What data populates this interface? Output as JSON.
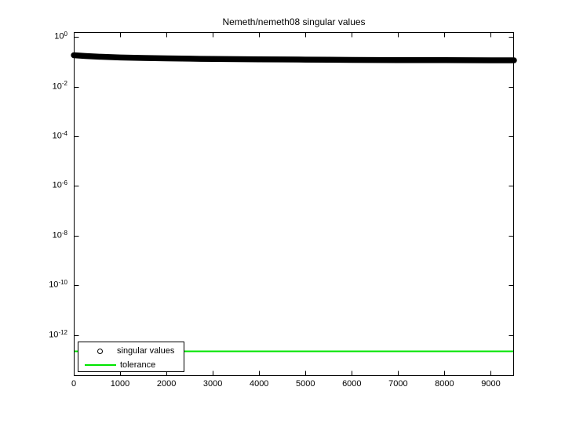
{
  "figure": {
    "title": "Nemeth/nemeth08 singular values",
    "background_color": "#ffffff",
    "frame_color": "#000000"
  },
  "legend": {
    "entries": [
      {
        "label": "singular values",
        "marker": "open-circle-icon",
        "color": "#000000"
      },
      {
        "label": "tolerance",
        "marker": "line",
        "color": "#00e400"
      }
    ]
  },
  "chart_data": {
    "type": "scatter",
    "title": "Nemeth/nemeth08 singular values",
    "xlabel": "",
    "ylabel": "",
    "grid": false,
    "legend_position": "bottom-left-inside",
    "x_ticks": [
      0,
      1000,
      2000,
      3000,
      4000,
      5000,
      6000,
      7000,
      8000,
      9000
    ],
    "y_tick_exponents": [
      0,
      -2,
      -4,
      -6,
      -8,
      -10,
      -12
    ],
    "xlim": [
      0,
      9500
    ],
    "ylim_log10": [
      -13.64,
      0.19
    ],
    "series": [
      {
        "name": "singular values",
        "marker": "o",
        "color": "#000000",
        "points": [
          [
            1,
            0.182
          ],
          [
            250,
            0.17
          ],
          [
            500,
            0.16
          ],
          [
            1000,
            0.148
          ],
          [
            1500,
            0.141
          ],
          [
            2000,
            0.136
          ],
          [
            2500,
            0.132
          ],
          [
            3000,
            0.129
          ],
          [
            3500,
            0.127
          ],
          [
            4000,
            0.125
          ],
          [
            4500,
            0.123
          ],
          [
            5000,
            0.121
          ],
          [
            5500,
            0.12
          ],
          [
            6000,
            0.118
          ],
          [
            6500,
            0.117
          ],
          [
            7000,
            0.116
          ],
          [
            7500,
            0.1155
          ],
          [
            8000,
            0.115
          ],
          [
            8500,
            0.1145
          ],
          [
            9000,
            0.114
          ],
          [
            9500,
            0.1135
          ]
        ]
      },
      {
        "name": "tolerance",
        "type": "hline",
        "color": "#00e400",
        "value": 2.3e-13
      }
    ]
  }
}
